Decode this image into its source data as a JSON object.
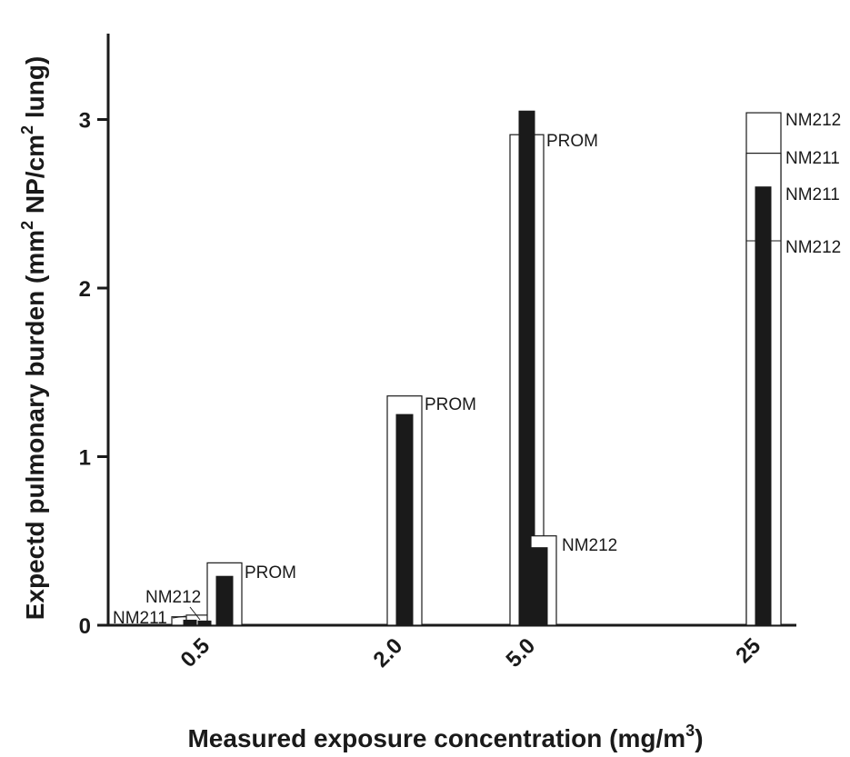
{
  "chart_data": {
    "type": "bar",
    "xlabel": "Measured exposure concentration (mg/m",
    "xlabel_sup": "3",
    "xlabel_end": ")",
    "ylabel_parts": [
      "Expectd pulmonary burden (mm",
      "2",
      " NP/cm",
      "2",
      " lung)"
    ],
    "ylim": [
      0,
      3.5
    ],
    "yticks": [
      "0",
      "1",
      "2",
      "3"
    ],
    "categories": [
      "0.5",
      "2.0",
      "5.0",
      "25"
    ],
    "groups": [
      {
        "category": "0.5",
        "bars": [
          {
            "label": "NM211",
            "style": "open",
            "value": 0.05,
            "stacked_label": false
          },
          {
            "label": "NM212",
            "style": "open",
            "value": 0.06,
            "stacked_label": false
          },
          {
            "label": "PROM",
            "style": "open",
            "value": 0.37,
            "stacked_label": false
          }
        ],
        "filled": [
          {
            "label": "NM211",
            "value": 0.03
          },
          {
            "label": "NM212",
            "value": 0.025
          },
          {
            "label": "PROM",
            "value": 0.29
          }
        ]
      },
      {
        "category": "2.0",
        "bars": [
          {
            "label": "PROM",
            "style": "open",
            "value": 1.36
          }
        ],
        "filled": [
          {
            "label": "PROM",
            "value": 1.25
          }
        ]
      },
      {
        "category": "5.0",
        "bars": [
          {
            "label": "PROM",
            "style": "open",
            "value": 2.91
          },
          {
            "label": "NM212",
            "style": "open",
            "value": 0.53
          }
        ],
        "filled": [
          {
            "label": "PROM",
            "value": 3.05
          },
          {
            "label": "NM212",
            "value": 0.46
          }
        ]
      },
      {
        "category": "25",
        "bars": [
          {
            "label": "NM212",
            "style": "open",
            "value": 3.04
          },
          {
            "label": "NM211",
            "style": "open",
            "value": 2.8
          }
        ],
        "filled": [
          {
            "label": "NM211",
            "value": 2.6
          },
          {
            "label": "NM212",
            "value": 2.28
          }
        ]
      }
    ],
    "annotations": [
      "NM211",
      "NM212",
      "PROM",
      "PROM",
      "PROM",
      "NM212",
      "NM212",
      "NM211",
      "NM211",
      "NM212"
    ]
  }
}
